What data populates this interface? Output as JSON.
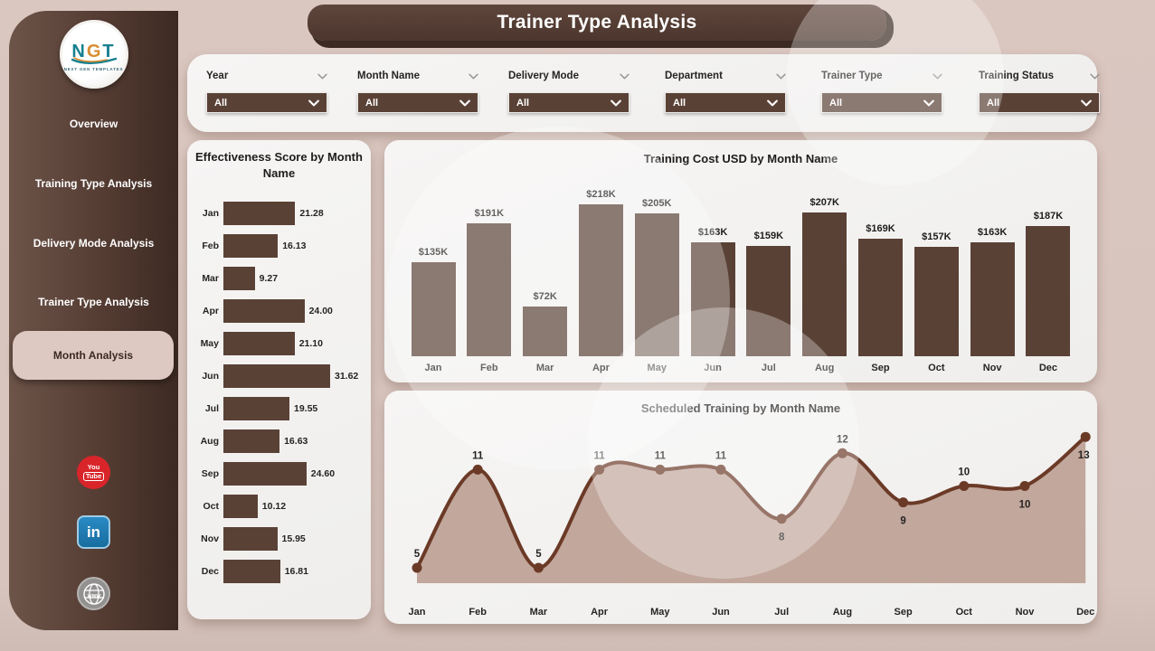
{
  "title_bar": {
    "title": "Trainer Type Analysis"
  },
  "sidebar": {
    "logo": {
      "text_n": "N",
      "text_g": "G",
      "text_t": "T",
      "subtext": "NEXT GEN TEMPLATES"
    },
    "items": [
      {
        "label": "Overview",
        "active": false
      },
      {
        "label": "Training Type Analysis",
        "active": false
      },
      {
        "label": "Delivery Mode Analysis",
        "active": false
      },
      {
        "label": "Trainer Type Analysis",
        "active": false
      },
      {
        "label": "Month Analysis",
        "active": true
      }
    ],
    "social": {
      "youtube": {
        "line1": "You",
        "line2": "Tube"
      },
      "linkedin": {
        "label": "in"
      },
      "website": {
        "label": "www"
      }
    }
  },
  "filters": [
    {
      "label": "Year",
      "value": "All"
    },
    {
      "label": "Month Name",
      "value": "All"
    },
    {
      "label": "Delivery Mode",
      "value": "All"
    },
    {
      "label": "Department",
      "value": "All"
    },
    {
      "label": "Trainer Type",
      "value": "All"
    },
    {
      "label": "Training Status",
      "value": "All"
    }
  ],
  "chart_data": [
    {
      "id": "effectiveness-score",
      "type": "bar",
      "orientation": "horizontal",
      "title": "Effectiveness Score by Month Name",
      "categories": [
        "Jan",
        "Feb",
        "Mar",
        "Apr",
        "May",
        "Jun",
        "Jul",
        "Aug",
        "Sep",
        "Oct",
        "Nov",
        "Dec"
      ],
      "values": [
        21.28,
        16.13,
        9.27,
        24.0,
        21.1,
        31.62,
        19.55,
        16.63,
        24.6,
        10.12,
        15.95,
        16.81
      ],
      "value_labels": [
        "21.28",
        "16.13",
        "9.27",
        "24.00",
        "21.10",
        "31.62",
        "19.55",
        "16.63",
        "24.60",
        "10.12",
        "15.95",
        "16.81"
      ],
      "xlim": [
        0,
        31.62
      ],
      "grid": false
    },
    {
      "id": "training-cost",
      "type": "bar",
      "orientation": "vertical",
      "title": "Training Cost USD by Month Name",
      "categories": [
        "Jan",
        "Feb",
        "Mar",
        "Apr",
        "May",
        "Jun",
        "Jul",
        "Aug",
        "Sep",
        "Oct",
        "Nov",
        "Dec"
      ],
      "values": [
        135000,
        191000,
        72000,
        218000,
        205000,
        163000,
        159000,
        207000,
        169000,
        157000,
        163000,
        187000
      ],
      "value_labels": [
        "$135K",
        "$191K",
        "$72K",
        "$218K",
        "$205K",
        "$163K",
        "$159K",
        "$207K",
        "$169K",
        "$157K",
        "$163K",
        "$187K"
      ],
      "ylim": [
        0,
        230000
      ],
      "grid": false
    },
    {
      "id": "scheduled-training",
      "type": "area",
      "title": "Scheduled Training by Month Name",
      "categories": [
        "Jan",
        "Feb",
        "Mar",
        "Apr",
        "May",
        "Jun",
        "Jul",
        "Aug",
        "Sep",
        "Oct",
        "Nov",
        "Dec"
      ],
      "values": [
        5,
        11,
        5,
        11,
        11,
        11,
        8,
        12,
        9,
        10,
        10,
        13
      ],
      "value_labels": [
        "5",
        "11",
        "5",
        "11",
        "11",
        "11",
        "8",
        "12",
        "9",
        "10",
        "10",
        "13"
      ],
      "label_side": [
        "above",
        "above",
        "above",
        "above",
        "above",
        "above",
        "below",
        "above",
        "below",
        "above",
        "below",
        "below"
      ],
      "ylim": [
        0,
        14
      ],
      "grid": false
    }
  ],
  "colors": {
    "page_bg": "#d7c4bd",
    "sidebar_from": "#6d5449",
    "sidebar_to": "#3c2a22",
    "accent_brown": "#5a4136",
    "line_stroke": "#6b3a27",
    "area_fill": "#c2a79c",
    "card_bg": "#f3f2f0",
    "active_pill": "#ddc9c2",
    "youtube_red": "#d9252a",
    "linkedin_blue": "#1f7bb6",
    "globe_gray": "#939190",
    "label_dark": "#262422"
  }
}
